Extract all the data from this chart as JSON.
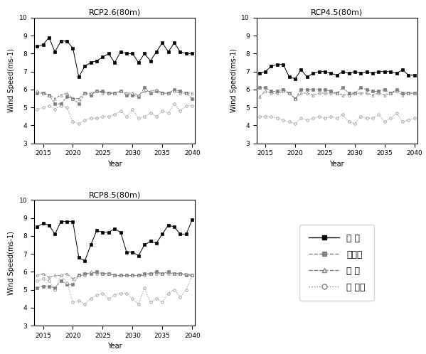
{
  "years": [
    2014,
    2015,
    2016,
    2017,
    2018,
    2019,
    2020,
    2021,
    2022,
    2023,
    2024,
    2025,
    2026,
    2027,
    2028,
    2029,
    2030,
    2031,
    2032,
    2033,
    2034,
    2035,
    2036,
    2037,
    2038,
    2039,
    2040
  ],
  "rcp26": {
    "title": "RCP2.6(80m)",
    "hankyung": [
      8.4,
      8.5,
      8.9,
      8.1,
      8.7,
      8.7,
      8.3,
      6.7,
      7.3,
      7.5,
      7.6,
      7.8,
      8.0,
      7.5,
      8.1,
      8.0,
      8.0,
      7.5,
      8.0,
      7.6,
      8.1,
      8.6,
      8.1,
      8.6,
      8.1,
      8.0,
      8.0
    ],
    "daegwallyeong": [
      5.8,
      5.8,
      5.7,
      5.2,
      5.2,
      5.6,
      5.5,
      5.2,
      5.8,
      5.7,
      5.9,
      5.9,
      5.8,
      5.8,
      5.9,
      5.7,
      5.7,
      5.6,
      6.1,
      5.8,
      5.9,
      5.8,
      5.8,
      6.0,
      5.9,
      5.8,
      5.5
    ],
    "yeolal": [
      5.9,
      5.8,
      5.7,
      5.5,
      5.7,
      5.8,
      5.5,
      5.5,
      5.8,
      5.8,
      5.9,
      5.8,
      5.8,
      5.8,
      5.9,
      5.8,
      5.8,
      5.7,
      5.9,
      5.9,
      6.0,
      5.8,
      5.8,
      5.9,
      5.8,
      5.8,
      5.8
    ],
    "seonamhae": [
      4.9,
      5.0,
      5.1,
      4.9,
      5.1,
      5.0,
      4.2,
      4.1,
      4.3,
      4.4,
      4.4,
      4.5,
      4.5,
      4.6,
      4.8,
      4.5,
      4.9,
      4.4,
      4.5,
      4.7,
      4.5,
      4.8,
      4.7,
      5.2,
      4.8,
      5.1,
      5.1
    ]
  },
  "rcp45": {
    "title": "RCP4.5(80m)",
    "hankyung": [
      6.9,
      7.0,
      7.3,
      7.4,
      7.4,
      6.7,
      6.6,
      7.1,
      6.7,
      6.9,
      7.0,
      7.0,
      6.9,
      6.8,
      7.0,
      6.9,
      7.0,
      6.9,
      7.0,
      6.9,
      7.0,
      7.0,
      7.0,
      6.9,
      7.1,
      6.8,
      6.8
    ],
    "daegwallyeong": [
      6.1,
      6.1,
      5.9,
      5.9,
      6.0,
      5.8,
      5.5,
      6.0,
      6.0,
      6.0,
      6.0,
      6.0,
      5.9,
      5.8,
      6.1,
      5.8,
      5.8,
      6.1,
      6.0,
      5.9,
      5.9,
      6.0,
      5.8,
      6.0,
      5.8,
      5.8,
      5.8
    ],
    "yeolal": [
      5.6,
      5.9,
      5.8,
      5.8,
      5.9,
      5.8,
      5.5,
      5.8,
      5.8,
      5.7,
      5.8,
      5.8,
      5.8,
      5.8,
      5.7,
      5.7,
      5.8,
      5.8,
      5.8,
      5.7,
      5.8,
      5.7,
      5.8,
      5.9,
      5.7,
      5.8,
      5.8
    ],
    "seonamhae": [
      4.5,
      4.5,
      4.5,
      4.4,
      4.3,
      4.2,
      4.1,
      4.4,
      4.3,
      4.4,
      4.5,
      4.4,
      4.5,
      4.4,
      4.6,
      4.2,
      4.1,
      4.5,
      4.4,
      4.4,
      4.6,
      4.2,
      4.4,
      4.7,
      4.2,
      4.3,
      4.4
    ]
  },
  "rcp85": {
    "title": "RCP8.5(80m)",
    "hankyung": [
      8.5,
      8.7,
      8.6,
      8.1,
      8.8,
      8.8,
      8.8,
      6.8,
      6.6,
      7.5,
      8.3,
      8.2,
      8.2,
      8.4,
      8.2,
      7.1,
      7.1,
      6.9,
      7.5,
      7.7,
      7.6,
      8.1,
      8.6,
      8.5,
      8.1,
      8.1,
      8.9
    ],
    "daegwallyeong": [
      5.1,
      5.2,
      5.2,
      5.1,
      5.5,
      5.3,
      5.3,
      5.8,
      5.9,
      5.9,
      6.0,
      5.9,
      5.9,
      5.8,
      5.8,
      5.8,
      5.8,
      5.8,
      5.9,
      5.9,
      6.0,
      5.9,
      6.0,
      5.9,
      5.9,
      5.8,
      5.8
    ],
    "yeolal": [
      5.8,
      5.9,
      5.7,
      5.8,
      5.8,
      5.9,
      5.6,
      5.8,
      5.8,
      6.0,
      5.9,
      5.9,
      5.9,
      5.8,
      5.8,
      5.8,
      5.8,
      5.8,
      5.8,
      5.9,
      5.9,
      5.9,
      5.9,
      5.9,
      5.9,
      5.9,
      5.8
    ],
    "seonamhae": [
      5.5,
      5.6,
      5.5,
      5.0,
      5.8,
      5.4,
      4.3,
      4.4,
      4.2,
      4.5,
      4.7,
      4.8,
      4.5,
      4.7,
      4.8,
      4.8,
      4.5,
      4.2,
      5.1,
      4.3,
      4.5,
      4.3,
      4.8,
      5.0,
      4.6,
      5.0,
      5.8
    ]
  },
  "legend_labels": [
    "한 경",
    "대관령",
    "열 알",
    "서 남해"
  ],
  "ylabel": "Wind Speed(ms-1)",
  "xlabel": "Year",
  "ylim": [
    3,
    10
  ],
  "yticks": [
    3,
    4,
    5,
    6,
    7,
    8,
    9,
    10
  ],
  "xticks": [
    2015,
    2020,
    2025,
    2030,
    2035,
    2040
  ]
}
